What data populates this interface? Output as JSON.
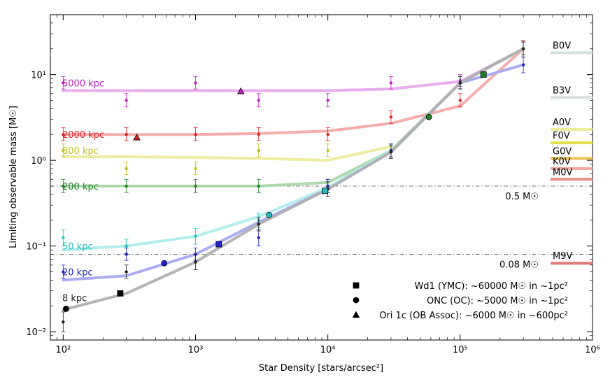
{
  "chart_data": {
    "type": "line",
    "xscale": "log",
    "yscale": "log",
    "xlim": [
      80,
      1000000
    ],
    "ylim": [
      0.008,
      50
    ],
    "xlabel": "Star Density [stars/arcsec²]",
    "ylabel": "Limiting observable mass [M☉]",
    "xticks": [
      {
        "value": 100,
        "label": "10²"
      },
      {
        "value": 1000,
        "label": "10³"
      },
      {
        "value": 10000,
        "label": "10⁴"
      },
      {
        "value": 100000,
        "label": "10⁵"
      },
      {
        "value": 1000000,
        "label": "10⁶"
      }
    ],
    "yticks": [
      {
        "value": 0.01,
        "label": "10⁻²"
      },
      {
        "value": 0.1,
        "label": "10⁻¹"
      },
      {
        "value": 1,
        "label": "10⁰"
      },
      {
        "value": 10,
        "label": "10¹"
      }
    ],
    "series": [
      {
        "name": "5000 kpc",
        "color": "#c020c0",
        "line_color": "#e9a8ee",
        "x": [
          100,
          300,
          1000,
          3000,
          10000,
          30000,
          100000,
          300000
        ],
        "fit": [
          6.5,
          6.5,
          6.5,
          6.5,
          6.5,
          6.8,
          8.3,
          20
        ],
        "points": [
          8.0,
          5.0,
          8.0,
          5.0,
          5.0,
          8.0,
          8.5,
          20
        ],
        "err_up": [
          1.5,
          1.0,
          1.5,
          1.0,
          1.0,
          1.5,
          1.5,
          5.0
        ],
        "err_dn": [
          1.2,
          0.8,
          1.2,
          0.8,
          0.8,
          1.2,
          1.2,
          4.0
        ]
      },
      {
        "name": "2000 kpc",
        "color": "#e02020",
        "line_color": "#f7a8a8",
        "x": [
          100,
          300,
          1000,
          3000,
          10000,
          30000,
          100000,
          300000
        ],
        "fit": [
          2.0,
          2.0,
          2.0,
          2.05,
          2.2,
          2.7,
          4.3,
          20
        ],
        "points": [
          2.0,
          2.0,
          2.0,
          2.0,
          2.0,
          3.2,
          5.0,
          20
        ],
        "err_up": [
          0.4,
          0.4,
          0.4,
          0.4,
          0.4,
          0.6,
          1.0,
          5.0
        ],
        "err_dn": [
          0.3,
          0.3,
          0.3,
          0.3,
          0.3,
          0.5,
          0.8,
          4.0
        ]
      },
      {
        "name": "800 kpc",
        "color": "#c0c020",
        "line_color": "#ecec9c",
        "x": [
          100,
          300,
          1000,
          3000,
          10000,
          30000
        ],
        "fit": [
          1.1,
          1.1,
          1.08,
          1.05,
          1.0,
          1.45
        ],
        "points": [
          1.3,
          0.8,
          0.8,
          1.3,
          1.3,
          1.3
        ],
        "err_up": [
          0.25,
          0.15,
          0.15,
          0.25,
          0.25,
          0.25
        ],
        "err_dn": [
          0.2,
          0.12,
          0.12,
          0.2,
          0.2,
          0.2
        ]
      },
      {
        "name": "200 kpc",
        "color": "#208020",
        "line_color": "#a8d8a8",
        "x": [
          100,
          300,
          1000,
          3000,
          10000,
          30000,
          100000,
          300000
        ],
        "fit": [
          0.5,
          0.5,
          0.5,
          0.5,
          0.55,
          1.3,
          8.0,
          20
        ],
        "points": [
          0.5,
          0.5,
          0.5,
          0.5,
          0.5,
          1.3,
          8.0,
          20
        ],
        "err_up": [
          0.1,
          0.1,
          0.1,
          0.1,
          0.1,
          0.25,
          1.5,
          4.0
        ],
        "err_dn": [
          0.08,
          0.08,
          0.08,
          0.08,
          0.08,
          0.2,
          1.2,
          3.0
        ]
      },
      {
        "name": "50 kpc",
        "color": "#20c0c0",
        "line_color": "#b0ecec",
        "x": [
          100,
          300,
          1000,
          3000,
          10000,
          30000
        ],
        "fit": [
          0.09,
          0.1,
          0.13,
          0.22,
          0.48,
          1.3
        ],
        "points": [
          0.125,
          0.1,
          0.13,
          0.2,
          0.5,
          1.3
        ],
        "err_up": [
          0.03,
          0.02,
          0.03,
          0.04,
          0.1,
          0.25
        ],
        "err_dn": [
          0.025,
          0.018,
          0.025,
          0.035,
          0.08,
          0.2
        ]
      },
      {
        "name": "20 kpc",
        "color": "#2020c0",
        "line_color": "#a8a8f4",
        "x": [
          100,
          300,
          1000,
          3000,
          10000,
          30000,
          100000,
          300000
        ],
        "fit": [
          0.04,
          0.045,
          0.08,
          0.19,
          0.46,
          1.25,
          8.0,
          13
        ],
        "points": [
          0.05,
          0.08,
          0.08,
          0.125,
          0.5,
          1.3,
          8.0,
          13
        ],
        "err_up": [
          0.01,
          0.015,
          0.015,
          0.03,
          0.1,
          0.25,
          1.5,
          3.0
        ],
        "err_dn": [
          0.008,
          0.012,
          0.012,
          0.025,
          0.08,
          0.2,
          1.2,
          2.5
        ]
      },
      {
        "name": "8 kpc",
        "color": "#202020",
        "line_color": "#b0b0b0",
        "x": [
          100,
          300,
          1000,
          3000,
          10000,
          30000,
          100000,
          300000
        ],
        "fit": [
          0.018,
          0.028,
          0.065,
          0.18,
          0.46,
          1.25,
          8.0,
          20
        ],
        "points": [
          0.013,
          0.05,
          0.065,
          0.18,
          0.46,
          1.25,
          8.0,
          20
        ],
        "err_up": [
          0.004,
          0.01,
          0.015,
          0.035,
          0.1,
          0.25,
          1.5,
          4.0
        ],
        "err_dn": [
          0.003,
          0.008,
          0.012,
          0.03,
          0.08,
          0.2,
          1.2,
          3.0
        ]
      }
    ],
    "series_label_positions": [
      {
        "name": "5000 kpc",
        "y": 8.0
      },
      {
        "name": "2000 kpc",
        "y": 2.0
      },
      {
        "name": "800 kpc",
        "y": 1.3
      },
      {
        "name": "200 kpc",
        "y": 0.5
      },
      {
        "name": "50 kpc",
        "y": 0.1
      },
      {
        "name": "20 kpc",
        "y": 0.05
      },
      {
        "name": "8 kpc",
        "y": 0.025
      }
    ],
    "clusters": [
      {
        "name": "Wd1 (YMC)",
        "marker": "square",
        "points": [
          {
            "x": 270,
            "y": 0.028,
            "color": "#000000"
          },
          {
            "x": 1500,
            "y": 0.105,
            "color": "#2020d0"
          },
          {
            "x": 9500,
            "y": 0.44,
            "color": "#20c0c0"
          },
          {
            "x": 150000,
            "y": 10.0,
            "color": "#208020"
          }
        ]
      },
      {
        "name": "ONC (OC)",
        "marker": "circle",
        "points": [
          {
            "x": 105,
            "y": 0.0185,
            "color": "#000000"
          },
          {
            "x": 580,
            "y": 0.063,
            "color": "#2020d0"
          },
          {
            "x": 3600,
            "y": 0.23,
            "color": "#20c0c0"
          },
          {
            "x": 58000,
            "y": 3.2,
            "color": "#208020"
          }
        ]
      },
      {
        "name": "Ori 1c (OB Assoc)",
        "marker": "triangle",
        "points": [
          {
            "x": 360,
            "y": 1.85,
            "color": "#e02020"
          },
          {
            "x": 2200,
            "y": 6.4,
            "color": "#c020c0"
          }
        ]
      }
    ],
    "legend": {
      "placement": "lower-right",
      "entries": [
        {
          "marker": "square",
          "label": "Wd1 (YMC):  ~60000 M☉ in ~1pc²"
        },
        {
          "marker": "circle",
          "label": "ONC (OC):    ~5000 M☉ in ~1pc²"
        },
        {
          "marker": "triangle",
          "label": "Ori 1c (OB Assoc):    ~6000 M☉ in ~600pc²"
        }
      ]
    },
    "reference_lines": [
      {
        "y": 0.5,
        "label": "0.5 M☉"
      },
      {
        "y": 0.08,
        "label": "0.08 M☉"
      }
    ],
    "spectral_types": [
      {
        "label": "B0V",
        "mass": 18,
        "color": "#d6dede"
      },
      {
        "label": "B3V",
        "mass": 5.4,
        "color": "#d6dede"
      },
      {
        "label": "A0V",
        "mass": 2.3,
        "color": "#ecec9c"
      },
      {
        "label": "F0V",
        "mass": 1.6,
        "color": "#e2e24a"
      },
      {
        "label": "G0V",
        "mass": 1.05,
        "color": "#eac050"
      },
      {
        "label": "K0V",
        "mass": 0.8,
        "color": "#f0a8a0"
      },
      {
        "label": "M0V",
        "mass": 0.6,
        "color": "#ec8c84"
      },
      {
        "label": "M9V",
        "mass": 0.063,
        "color": "#e07a74"
      }
    ]
  }
}
